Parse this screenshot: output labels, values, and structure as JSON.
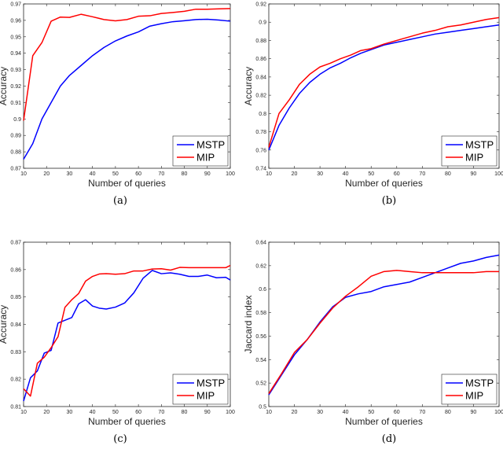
{
  "colors": {
    "MSTP": "#0000ff",
    "MIP": "#ff0000",
    "axis": "#262626"
  },
  "chart_data": [
    {
      "type": "line",
      "caption": "(a)",
      "xlabel": "Number of queries",
      "ylabel": "Accuracy",
      "xlim": [
        10,
        100
      ],
      "ylim": [
        0.87,
        0.97
      ],
      "xticks": [
        "10",
        "20",
        "30",
        "40",
        "50",
        "60",
        "70",
        "80",
        "90",
        "100"
      ],
      "yticks": [
        "0.87",
        "0.88",
        "0.89",
        "0.9",
        "0.91",
        "0.92",
        "0.93",
        "0.94",
        "0.95",
        "0.96",
        "0.97"
      ],
      "legend_position": "bottom-right",
      "series": [
        {
          "name": "MSTP",
          "color": "MSTP",
          "x": [
            10,
            14,
            18,
            22,
            26,
            30,
            35,
            40,
            45,
            50,
            55,
            60,
            65,
            70,
            75,
            80,
            85,
            90,
            95,
            100
          ],
          "y": [
            0.8755,
            0.885,
            0.9,
            0.91,
            0.92,
            0.9265,
            0.9325,
            0.9385,
            0.9435,
            0.9475,
            0.9505,
            0.953,
            0.9565,
            0.958,
            0.9592,
            0.9598,
            0.9605,
            0.9607,
            0.9602,
            0.9595
          ]
        },
        {
          "name": "MIP",
          "color": "MIP",
          "x": [
            10,
            14,
            18,
            22,
            26,
            30,
            35,
            40,
            45,
            50,
            55,
            60,
            65,
            70,
            75,
            80,
            85,
            90,
            95,
            100
          ],
          "y": [
            0.899,
            0.9385,
            0.9465,
            0.9595,
            0.962,
            0.9618,
            0.9637,
            0.9622,
            0.9605,
            0.9597,
            0.9605,
            0.9625,
            0.9628,
            0.9642,
            0.9648,
            0.9655,
            0.9668,
            0.9668,
            0.967,
            0.9672
          ]
        }
      ]
    },
    {
      "type": "line",
      "caption": "(b)",
      "xlabel": "Number of queries",
      "ylabel": "Accuracy",
      "xlim": [
        10,
        100
      ],
      "ylim": [
        0.74,
        0.92
      ],
      "xticks": [
        "10",
        "20",
        "30",
        "40",
        "50",
        "60",
        "70",
        "80",
        "90",
        "100"
      ],
      "yticks": [
        "0.74",
        "0.76",
        "0.78",
        "0.8",
        "0.82",
        "0.84",
        "0.86",
        "0.88",
        "0.9",
        "0.92"
      ],
      "legend_position": "bottom-right",
      "series": [
        {
          "name": "MSTP",
          "color": "MSTP",
          "x": [
            10,
            14,
            18,
            22,
            26,
            30,
            34,
            38,
            42,
            46,
            50,
            55,
            60,
            65,
            70,
            75,
            80,
            85,
            90,
            95,
            100
          ],
          "y": [
            0.76,
            0.787,
            0.806,
            0.822,
            0.834,
            0.843,
            0.85,
            0.855,
            0.861,
            0.866,
            0.87,
            0.875,
            0.878,
            0.881,
            0.884,
            0.887,
            0.889,
            0.891,
            0.893,
            0.895,
            0.897
          ]
        },
        {
          "name": "MIP",
          "color": "MIP",
          "x": [
            10,
            14,
            18,
            22,
            26,
            30,
            34,
            38,
            42,
            46,
            50,
            55,
            60,
            65,
            70,
            75,
            80,
            85,
            90,
            95,
            100
          ],
          "y": [
            0.763,
            0.8,
            0.815,
            0.832,
            0.843,
            0.851,
            0.855,
            0.86,
            0.864,
            0.869,
            0.871,
            0.876,
            0.88,
            0.884,
            0.888,
            0.891,
            0.895,
            0.897,
            0.9,
            0.903,
            0.905
          ]
        }
      ]
    },
    {
      "type": "line",
      "caption": "(c)",
      "xlabel": "Number of queries",
      "ylabel": "Accuracy",
      "xlim": [
        10,
        100
      ],
      "ylim": [
        0.81,
        0.87
      ],
      "xticks": [
        "10",
        "20",
        "30",
        "40",
        "50",
        "60",
        "70",
        "80",
        "90",
        "100"
      ],
      "yticks": [
        "0.81",
        "0.82",
        "0.83",
        "0.84",
        "0.85",
        "0.86",
        "0.87"
      ],
      "legend_position": "bottom-right",
      "series": [
        {
          "name": "MSTP",
          "color": "MSTP",
          "x": [
            10,
            13,
            16,
            19,
            22,
            25,
            28,
            31,
            34,
            37,
            40,
            43,
            46,
            50,
            54,
            58,
            62,
            66,
            70,
            74,
            78,
            82,
            86,
            90,
            94,
            98,
            100
          ],
          "y": [
            0.812,
            0.8205,
            0.823,
            0.8295,
            0.8305,
            0.8405,
            0.8415,
            0.8425,
            0.8475,
            0.849,
            0.8467,
            0.8459,
            0.8456,
            0.8463,
            0.8478,
            0.8515,
            0.8568,
            0.8597,
            0.8585,
            0.8588,
            0.8583,
            0.8575,
            0.8575,
            0.858,
            0.857,
            0.8572,
            0.8562
          ]
        },
        {
          "name": "MIP",
          "color": "MIP",
          "x": [
            10,
            13,
            16,
            19,
            22,
            25,
            28,
            31,
            34,
            37,
            40,
            43,
            46,
            50,
            54,
            58,
            62,
            66,
            70,
            74,
            78,
            82,
            86,
            90,
            94,
            98,
            100
          ],
          "y": [
            0.8165,
            0.8138,
            0.8258,
            0.828,
            0.8315,
            0.8355,
            0.8462,
            0.849,
            0.8513,
            0.8558,
            0.8575,
            0.8584,
            0.8585,
            0.8583,
            0.8585,
            0.8595,
            0.8595,
            0.8602,
            0.8603,
            0.8598,
            0.8608,
            0.8607,
            0.8607,
            0.8607,
            0.8607,
            0.8607,
            0.8615
          ]
        }
      ]
    },
    {
      "type": "line",
      "caption": "(d)",
      "xlabel": "Number of queries",
      "ylabel": "Jaccard index",
      "xlim": [
        10,
        100
      ],
      "ylim": [
        0.5,
        0.64
      ],
      "xticks": [
        "10",
        "20",
        "30",
        "40",
        "50",
        "60",
        "70",
        "80",
        "90",
        "100"
      ],
      "yticks": [
        "0.5",
        "0.52",
        "0.54",
        "0.56",
        "0.58",
        "0.6",
        "0.62",
        "0.64"
      ],
      "legend_position": "bottom-right",
      "series": [
        {
          "name": "MSTP",
          "color": "MSTP",
          "x": [
            10,
            15,
            20,
            25,
            30,
            35,
            40,
            45,
            50,
            55,
            60,
            65,
            70,
            75,
            80,
            85,
            90,
            95,
            100
          ],
          "y": [
            0.51,
            0.527,
            0.544,
            0.557,
            0.572,
            0.585,
            0.593,
            0.596,
            0.598,
            0.602,
            0.604,
            0.606,
            0.61,
            0.614,
            0.618,
            0.622,
            0.624,
            0.627,
            0.629
          ]
        },
        {
          "name": "MIP",
          "color": "MIP",
          "x": [
            10,
            15,
            20,
            25,
            30,
            35,
            40,
            45,
            50,
            55,
            60,
            65,
            70,
            75,
            80,
            85,
            90,
            95,
            100
          ],
          "y": [
            0.511,
            0.528,
            0.546,
            0.557,
            0.571,
            0.584,
            0.594,
            0.602,
            0.611,
            0.615,
            0.616,
            0.615,
            0.614,
            0.614,
            0.614,
            0.614,
            0.614,
            0.615,
            0.615
          ]
        }
      ]
    }
  ]
}
